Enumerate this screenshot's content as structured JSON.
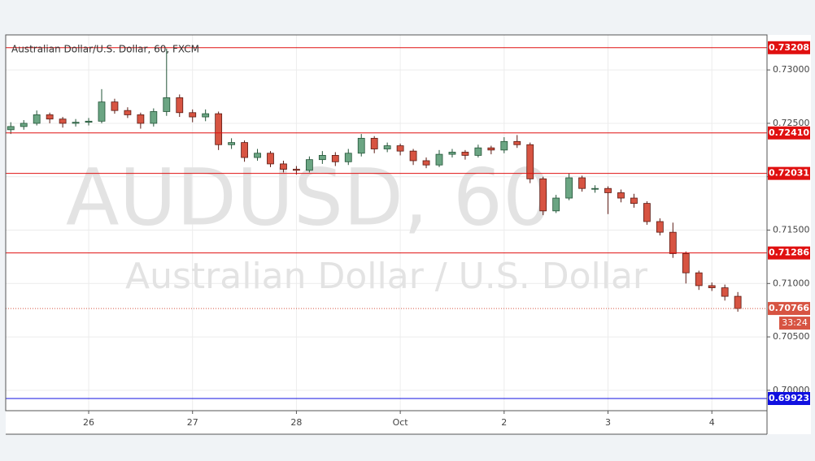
{
  "chart_data": {
    "type": "candlestick",
    "title": "Australian Dollar/U.S. Dollar, 60, FXCM",
    "watermark": [
      "AUDUSD, 60",
      "Australian Dollar / U.S. Dollar"
    ],
    "x": [
      -0.75,
      -0.625,
      -0.5,
      -0.375,
      -0.25,
      -0.125,
      0,
      0.125,
      0.25,
      0.375,
      0.5,
      0.625,
      0.75,
      0.875,
      1,
      1.125,
      1.25,
      1.375,
      1.5,
      1.625,
      1.75,
      1.875,
      2,
      2.125,
      2.25,
      2.375,
      2.5,
      2.625,
      2.75,
      2.875,
      3,
      3.125,
      3.25,
      3.375,
      3.5,
      3.625,
      3.75,
      3.875,
      4,
      4.125,
      4.25,
      4.375,
      4.5,
      4.625,
      4.75,
      4.875,
      5,
      5.125,
      5.25,
      5.375,
      5.5,
      5.625,
      5.75,
      5.875,
      6,
      6.125,
      6.25
    ],
    "open": [
      0.7244,
      0.7247,
      0.725,
      0.7258,
      0.7254,
      0.725,
      0.7251,
      0.7252,
      0.727,
      0.7262,
      0.7258,
      0.725,
      0.7261,
      0.7274,
      0.726,
      0.7256,
      0.7259,
      0.723,
      0.7232,
      0.7218,
      0.7222,
      0.7212,
      0.7207,
      0.7206,
      0.7216,
      0.722,
      0.7214,
      0.7222,
      0.7236,
      0.7226,
      0.7229,
      0.7224,
      0.7215,
      0.7211,
      0.7221,
      0.7223,
      0.722,
      0.7227,
      0.7225,
      0.7233,
      0.723,
      0.7198,
      0.7168,
      0.718,
      0.7199,
      0.7189,
      0.7189,
      0.7185,
      0.718,
      0.7175,
      0.7158,
      0.7148,
      0.7128,
      0.711,
      0.7098,
      0.7096,
      0.7088
    ],
    "high": [
      0.7251,
      0.7253,
      0.7262,
      0.726,
      0.7256,
      0.7254,
      0.7255,
      0.7282,
      0.7273,
      0.7265,
      0.726,
      0.7264,
      0.732,
      0.7277,
      0.7263,
      0.7263,
      0.7261,
      0.7236,
      0.7234,
      0.7226,
      0.7224,
      0.7215,
      0.721,
      0.7219,
      0.7224,
      0.7223,
      0.7226,
      0.724,
      0.7238,
      0.7232,
      0.7231,
      0.7226,
      0.7218,
      0.7225,
      0.7226,
      0.7225,
      0.723,
      0.7229,
      0.7237,
      0.7239,
      0.7232,
      0.72,
      0.7183,
      0.7203,
      0.7201,
      0.7192,
      0.7191,
      0.7188,
      0.7184,
      0.7177,
      0.7161,
      0.7157,
      0.713,
      0.7112,
      0.7101,
      0.7099,
      0.7092
    ],
    "low": [
      0.724,
      0.7244,
      0.7248,
      0.725,
      0.7246,
      0.7247,
      0.7248,
      0.725,
      0.7259,
      0.7255,
      0.7245,
      0.7247,
      0.7257,
      0.7256,
      0.7251,
      0.7252,
      0.7225,
      0.7226,
      0.7214,
      0.7215,
      0.7209,
      0.7204,
      0.7202,
      0.7204,
      0.7212,
      0.721,
      0.7211,
      0.7219,
      0.7222,
      0.7223,
      0.722,
      0.7211,
      0.7208,
      0.7209,
      0.7218,
      0.7216,
      0.7218,
      0.7221,
      0.7222,
      0.7227,
      0.7194,
      0.7164,
      0.7166,
      0.7178,
      0.7186,
      0.7185,
      0.7165,
      0.7176,
      0.7171,
      0.7155,
      0.7145,
      0.7124,
      0.71,
      0.7094,
      0.7093,
      0.7084,
      0.70736
    ],
    "close": [
      0.7247,
      0.725,
      0.7258,
      0.7254,
      0.725,
      0.7251,
      0.7252,
      0.727,
      0.7262,
      0.7258,
      0.725,
      0.7261,
      0.7274,
      0.726,
      0.7256,
      0.7259,
      0.723,
      0.7232,
      0.7218,
      0.7222,
      0.7212,
      0.7207,
      0.7206,
      0.7216,
      0.722,
      0.7214,
      0.7222,
      0.7236,
      0.7226,
      0.7229,
      0.7224,
      0.7215,
      0.7211,
      0.7221,
      0.7223,
      0.722,
      0.7227,
      0.7225,
      0.7233,
      0.723,
      0.7198,
      0.7168,
      0.718,
      0.7199,
      0.7189,
      0.7189,
      0.7185,
      0.718,
      0.7175,
      0.7158,
      0.7148,
      0.7128,
      0.711,
      0.7098,
      0.7096,
      0.7088,
      0.70766
    ],
    "up_color": "#6ba583",
    "down_color": "#d75442",
    "xlim": [
      -0.799,
      6.531
    ],
    "xticks": [
      {
        "value": 0,
        "label": "26"
      },
      {
        "value": 1,
        "label": "27"
      },
      {
        "value": 2,
        "label": "28"
      },
      {
        "value": 3,
        "label": "Oct"
      },
      {
        "value": 4,
        "label": "2"
      },
      {
        "value": 5,
        "label": "3"
      },
      {
        "value": 6,
        "label": "4"
      }
    ],
    "ylim": [
      0.69809,
      0.73328
    ],
    "yticks": [
      {
        "value": 0.73,
        "label": "0.73000"
      },
      {
        "value": 0.725,
        "label": "0.72500"
      },
      {
        "value": 0.72,
        "label": "0.72000"
      },
      {
        "value": 0.715,
        "label": "0.71500"
      },
      {
        "value": 0.71,
        "label": "0.71000"
      },
      {
        "value": 0.705,
        "label": "0.70500"
      },
      {
        "value": 0.7,
        "label": "0.70000"
      }
    ],
    "grid": true,
    "levels": [
      {
        "value": 0.73208,
        "label": "0.73208",
        "color": "#e01010"
      },
      {
        "value": 0.7241,
        "label": "0.72410",
        "color": "#e01010"
      },
      {
        "value": 0.72031,
        "label": "0.72031",
        "color": "#e01010"
      },
      {
        "value": 0.71286,
        "label": "0.71286",
        "color": "#e01010"
      },
      {
        "value": 0.69923,
        "label": "0.69923",
        "color": "#1010e0"
      }
    ],
    "last_price_label": "0.70766",
    "countdown": "33:24"
  }
}
